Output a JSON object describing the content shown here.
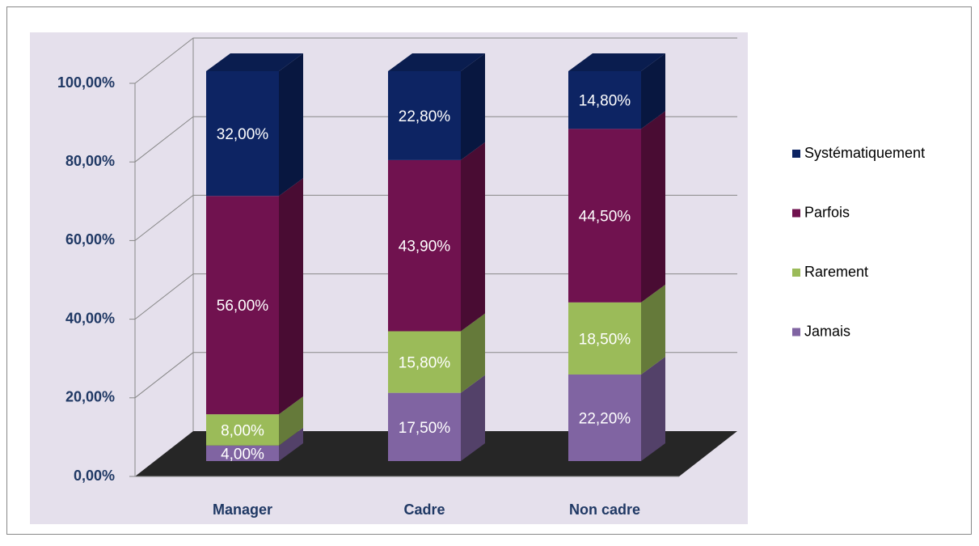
{
  "chart_data": {
    "type": "bar3d_stacked",
    "categories": [
      "Manager",
      "Cadre",
      "Non cadre"
    ],
    "series": [
      {
        "name": "Jamais",
        "color": "#8064a2",
        "values": [
          4,
          17.5,
          22.2
        ],
        "value_labels": [
          "4,00%",
          "17,50%",
          "22,20%"
        ]
      },
      {
        "name": "Rarement",
        "color": "#9bbb59",
        "values": [
          8,
          15.8,
          18.5
        ],
        "value_labels": [
          "8,00%",
          "15,80%",
          "18,50%"
        ]
      },
      {
        "name": "Parfois",
        "color": "#70124f",
        "values": [
          56,
          43.9,
          44.5
        ],
        "value_labels": [
          "56,00%",
          "43,90%",
          "44,50%"
        ]
      },
      {
        "name": "Systématiquement",
        "color": "#0d2463",
        "values": [
          32,
          22.8,
          14.8
        ],
        "value_labels": [
          "32,00%",
          "22,80%",
          "14,80%"
        ]
      }
    ],
    "ylim": [
      0,
      100
    ],
    "yticks": [
      {
        "value": 0,
        "label": "0,00%"
      },
      {
        "value": 20,
        "label": "20,00%"
      },
      {
        "value": 40,
        "label": "40,00%"
      },
      {
        "value": 60,
        "label": "60,00%"
      },
      {
        "value": 80,
        "label": "80,00%"
      },
      {
        "value": 100,
        "label": "100,00%"
      }
    ],
    "grid": true,
    "legend": "right"
  }
}
